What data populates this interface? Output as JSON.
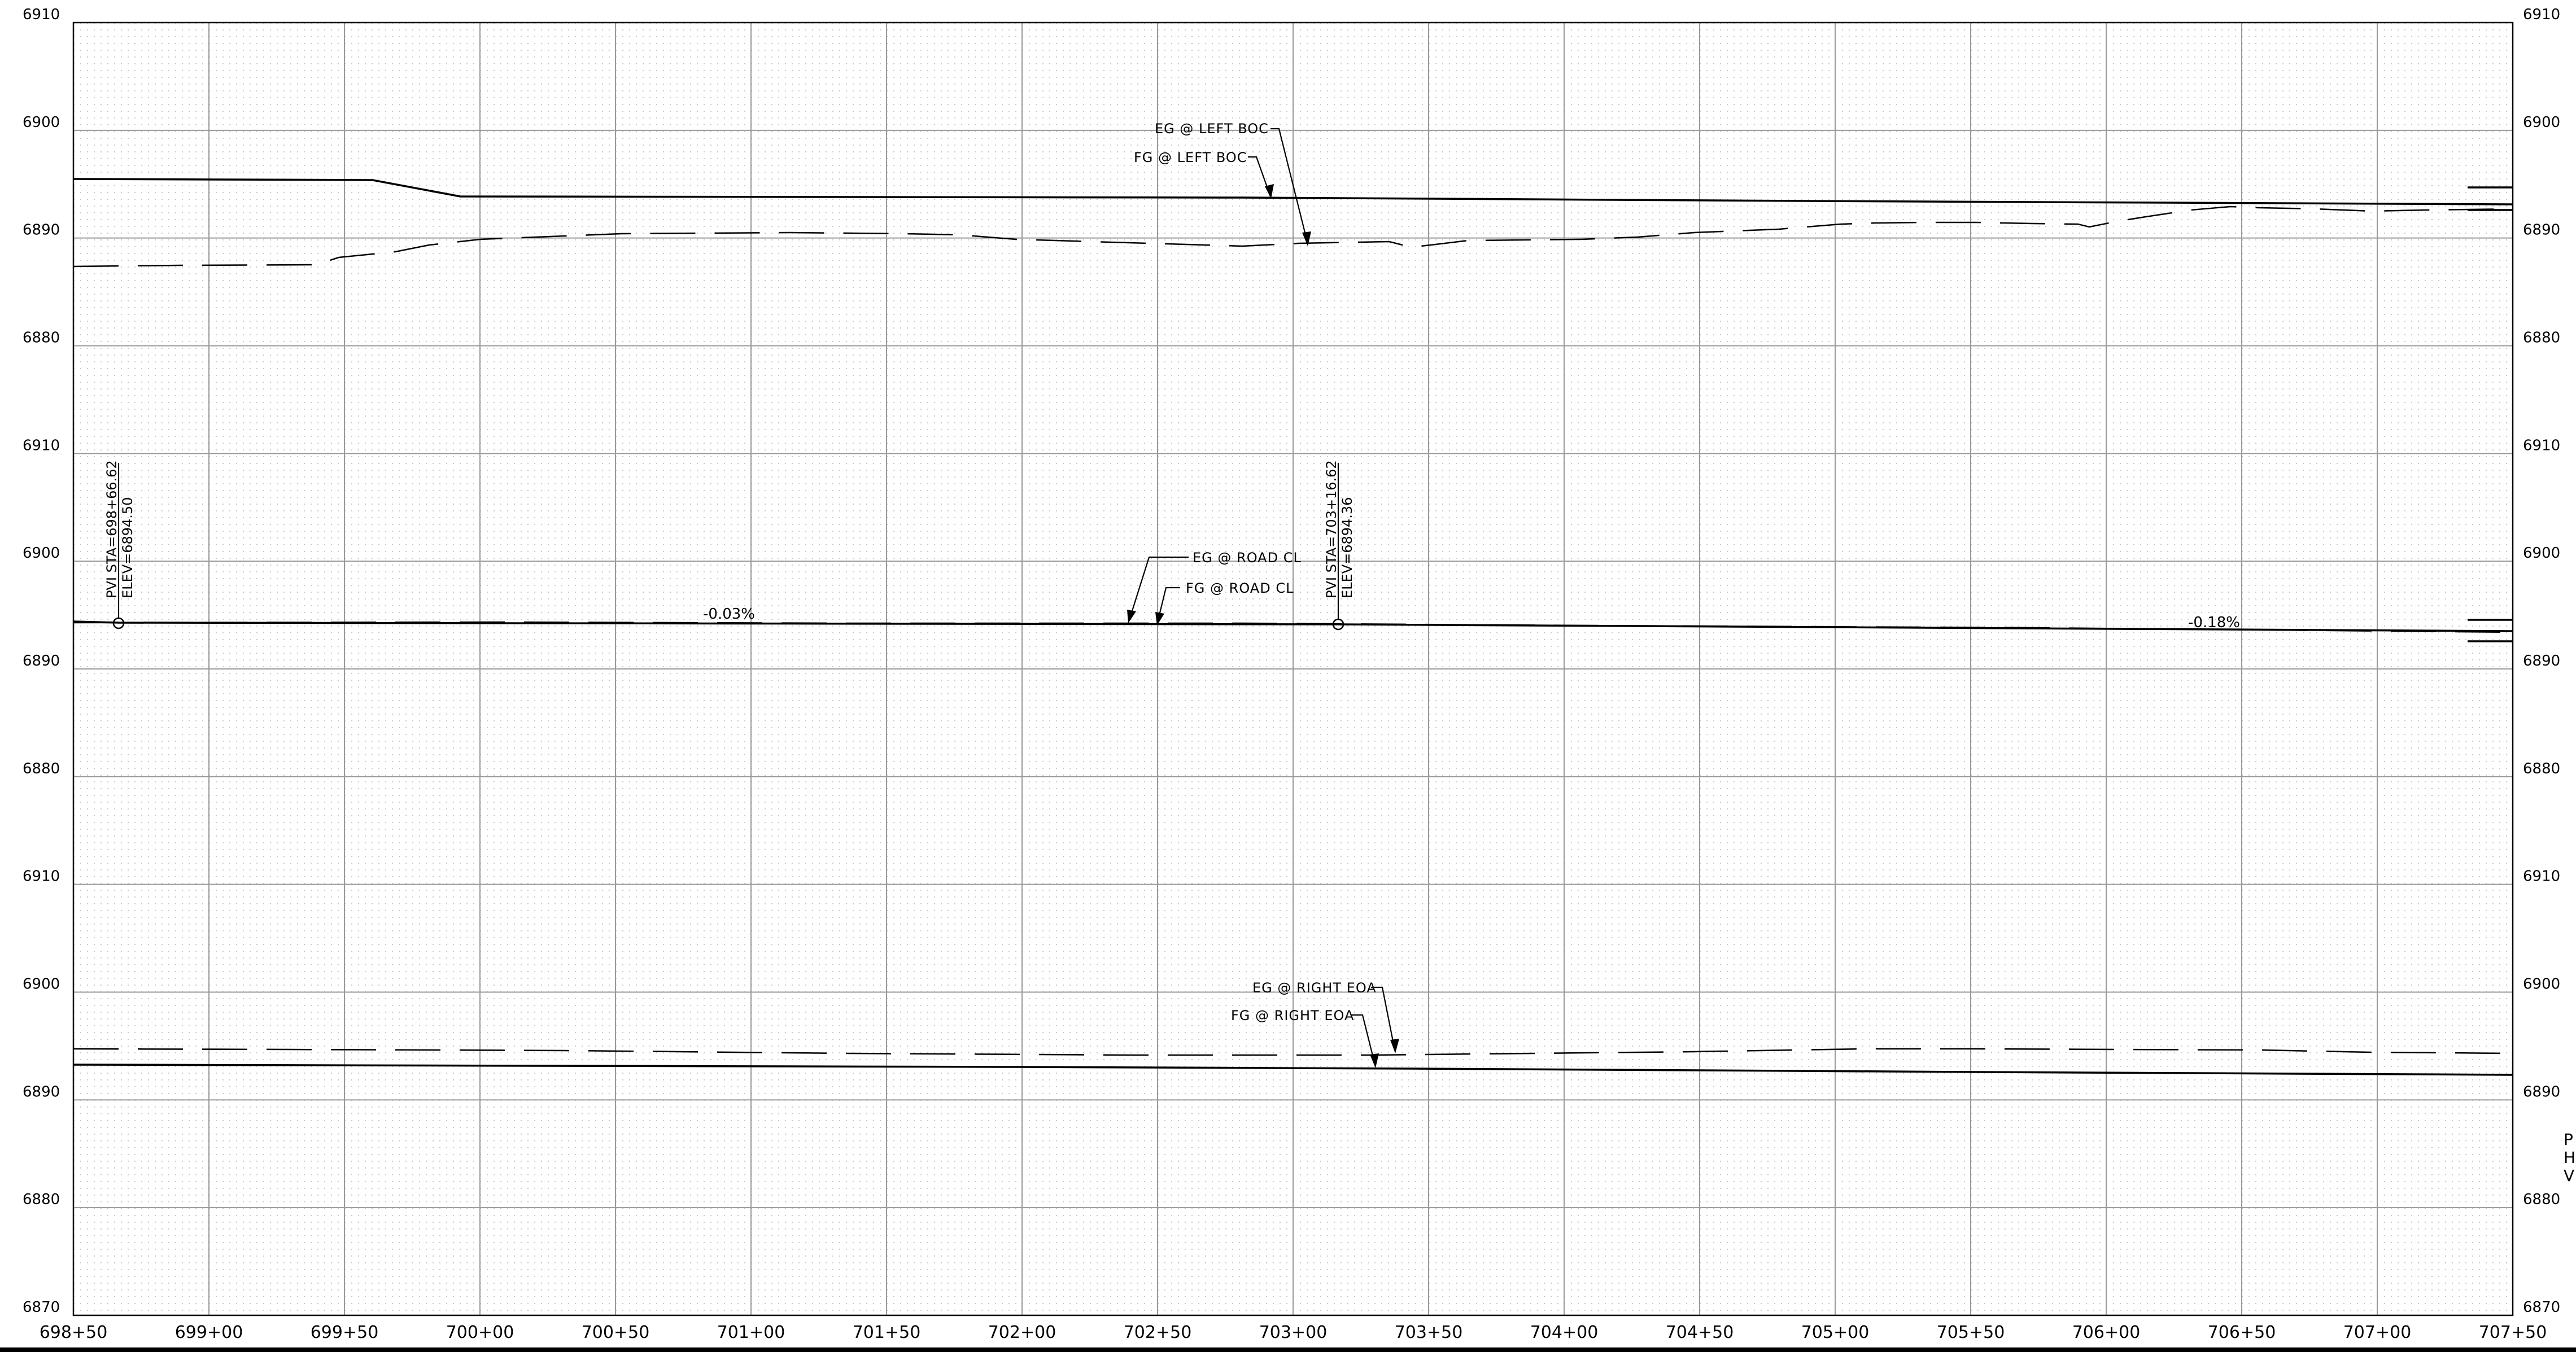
{
  "stations": [
    "698+50",
    "699+00",
    "699+50",
    "700+00",
    "700+50",
    "701+00",
    "701+50",
    "702+00",
    "702+50",
    "703+00",
    "703+50",
    "704+00",
    "704+50",
    "705+00",
    "705+50",
    "706+00",
    "706+50",
    "707+00",
    "707+50"
  ],
  "panels": [
    {
      "id": "left-boc",
      "elev_labels": [
        "6910",
        "6900",
        "6890",
        "6880"
      ],
      "callouts": [
        {
          "id": "eg-left-boc",
          "text": "EG @ LEFT BOC"
        },
        {
          "id": "fg-left-boc",
          "text": "FG @ LEFT BOC"
        }
      ]
    },
    {
      "id": "road-cl",
      "elev_labels": [
        "6910",
        "6900",
        "6890",
        "6880"
      ],
      "callouts": [
        {
          "id": "eg-road-cl",
          "text": "EG @ ROAD CL"
        },
        {
          "id": "fg-road-cl",
          "text": "FG @ ROAD CL"
        }
      ],
      "pvis": [
        {
          "sta": "PVI STA=698+66.62",
          "elev": "ELEV=6894.50"
        },
        {
          "sta": "PVI STA=703+16.62",
          "elev": "ELEV=6894.36"
        }
      ],
      "grades": [
        "-0.03%",
        "-0.18%"
      ]
    },
    {
      "id": "right-eoa",
      "elev_labels": [
        "6910",
        "6900",
        "6890",
        "6880",
        "6870"
      ],
      "callouts": [
        {
          "id": "eg-right-eoa",
          "text": "EG @ RIGHT EOA"
        },
        {
          "id": "fg-right-eoa",
          "text": "FG @ RIGHT EOA"
        }
      ]
    }
  ],
  "side_notes": [
    "P",
    "H",
    "V"
  ]
}
